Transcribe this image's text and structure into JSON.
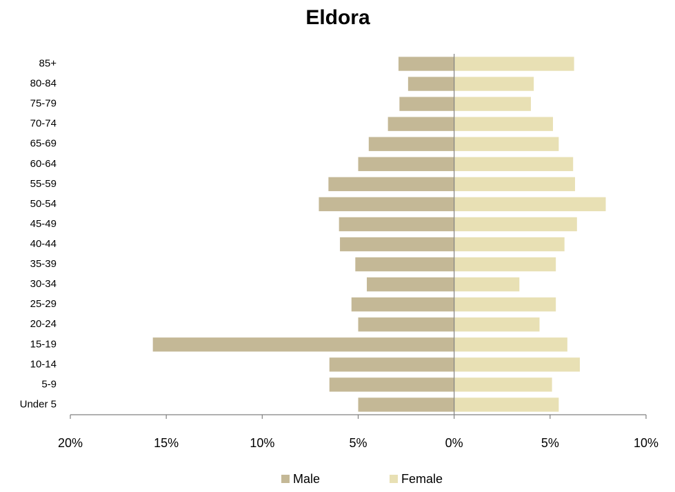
{
  "chart_data": {
    "type": "pyramid",
    "title": "Eldora",
    "categories": [
      "Under 5",
      "5-9",
      "10-14",
      "15-19",
      "20-24",
      "25-29",
      "30-34",
      "35-39",
      "40-44",
      "45-49",
      "50-54",
      "55-59",
      "60-64",
      "65-69",
      "70-74",
      "75-79",
      "80-84",
      "85+"
    ],
    "series": [
      {
        "name": "Male",
        "color": "#c4b896",
        "values": [
          -5.0,
          -6.5,
          -6.5,
          -15.7,
          -5.0,
          -5.35,
          -4.55,
          -5.15,
          -5.95,
          -6.0,
          -7.05,
          -6.55,
          -5.0,
          -4.45,
          -3.45,
          -2.85,
          -2.4,
          -2.9
        ]
      },
      {
        "name": "Female",
        "color": "#e8e0b4",
        "values": [
          5.45,
          5.1,
          6.55,
          5.9,
          4.45,
          5.3,
          3.4,
          5.3,
          5.75,
          6.4,
          7.9,
          6.3,
          6.2,
          5.45,
          5.15,
          4.0,
          4.15,
          6.25
        ]
      }
    ],
    "xlim": [
      -20,
      10
    ],
    "xticks": [
      {
        "value": -20,
        "label": "20%"
      },
      {
        "value": -15,
        "label": "15%"
      },
      {
        "value": -10,
        "label": "10%"
      },
      {
        "value": -5,
        "label": "5%"
      },
      {
        "value": 0,
        "label": "0%"
      },
      {
        "value": 5,
        "label": "5%"
      },
      {
        "value": 10,
        "label": "10%"
      }
    ],
    "legend": "bottom"
  }
}
